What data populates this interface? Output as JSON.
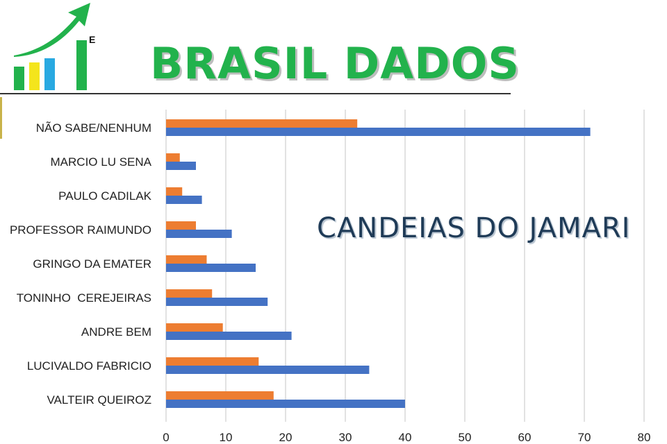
{
  "header": {
    "brand_title": "BRASIL DADOS",
    "logo_letter": "E",
    "colors": {
      "brand_green": "#22b24c",
      "logo_bar_1": "#22b24c",
      "logo_bar_2": "#f4e51c",
      "logo_bar_3": "#29a9e1",
      "logo_bar_4": "#22b24c"
    }
  },
  "chart_data": {
    "type": "bar",
    "orientation": "horizontal",
    "caption": "CANDEIAS DO JAMARI",
    "categories": [
      "NÃO SABE/NENHUM",
      "MARCIO LU SENA",
      "PAULO CADILAK",
      "PROFESSOR RAIMUNDO",
      "GRINGO DA EMATER",
      "TONINHO  CEREJEIRAS",
      "ANDRE BEM",
      "LUCIVALDO FABRICIO",
      "VALTEIR QUEIROZ"
    ],
    "series": [
      {
        "color": "#ed7d31",
        "values": [
          32,
          2.3,
          2.7,
          5,
          6.8,
          7.7,
          9.5,
          15.5,
          18
        ]
      },
      {
        "color": "#4472c4",
        "values": [
          71,
          5,
          6,
          11,
          15,
          17,
          21,
          34,
          40
        ]
      }
    ],
    "xlim": [
      0,
      80
    ],
    "x_ticks": [
      "0",
      "10",
      "20",
      "30",
      "40",
      "50",
      "60",
      "70",
      "80"
    ],
    "grid": true,
    "legend": "none"
  }
}
